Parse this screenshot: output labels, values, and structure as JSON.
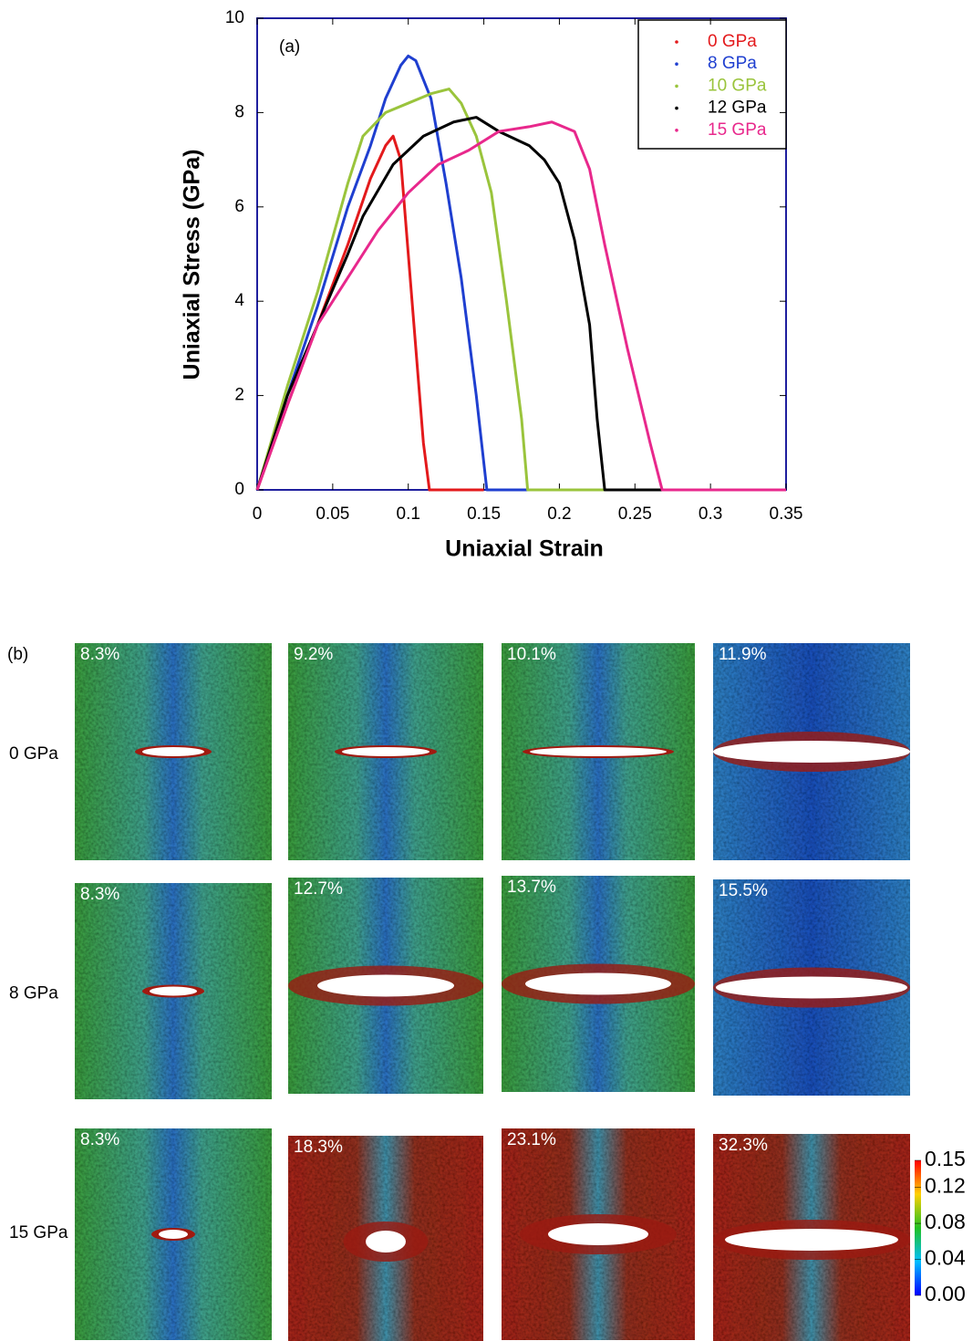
{
  "chart_data": {
    "type": "line",
    "annotation": "(a)",
    "xlabel": "Uniaxial Strain",
    "ylabel": "Uniaxial Stress (GPa)",
    "xlim": [
      0,
      0.35
    ],
    "xticks": [
      0,
      0.05,
      0.1,
      0.15,
      0.2,
      0.25,
      0.3,
      0.35
    ],
    "ylim": [
      0,
      10
    ],
    "yticks": [
      0,
      2,
      4,
      6,
      8,
      10
    ],
    "legend": "upper right",
    "series": [
      {
        "name": "0 GPa",
        "color": "#e31a1c",
        "x": [
          0,
          0.02,
          0.04,
          0.06,
          0.075,
          0.085,
          0.09,
          0.095,
          0.1,
          0.105,
          0.11,
          0.114,
          0.15
        ],
        "values": [
          0,
          1.8,
          3.5,
          5.2,
          6.6,
          7.3,
          7.5,
          7.0,
          5.0,
          3.0,
          1.0,
          0,
          0
        ]
      },
      {
        "name": "8 GPa",
        "color": "#1f3fd0",
        "x": [
          0,
          0.02,
          0.04,
          0.06,
          0.075,
          0.085,
          0.095,
          0.1,
          0.105,
          0.115,
          0.125,
          0.135,
          0.145,
          0.152,
          0.18
        ],
        "values": [
          0,
          2.0,
          3.9,
          6.0,
          7.3,
          8.3,
          9.0,
          9.2,
          9.1,
          8.3,
          6.5,
          4.5,
          2.0,
          0,
          0
        ]
      },
      {
        "name": "10 GPa",
        "color": "#9ac43c",
        "x": [
          0,
          0.02,
          0.04,
          0.06,
          0.07,
          0.085,
          0.1,
          0.115,
          0.127,
          0.135,
          0.145,
          0.155,
          0.165,
          0.175,
          0.179,
          0.23
        ],
        "values": [
          0,
          2.2,
          4.2,
          6.5,
          7.5,
          8.0,
          8.2,
          8.4,
          8.5,
          8.2,
          7.5,
          6.3,
          4.0,
          1.5,
          0,
          0
        ]
      },
      {
        "name": "12 GPa",
        "color": "#000000",
        "x": [
          0,
          0.02,
          0.04,
          0.06,
          0.07,
          0.09,
          0.11,
          0.13,
          0.145,
          0.16,
          0.18,
          0.19,
          0.2,
          0.21,
          0.22,
          0.225,
          0.23,
          0.268
        ],
        "values": [
          0,
          2.0,
          3.5,
          5.0,
          5.8,
          6.9,
          7.5,
          7.8,
          7.9,
          7.6,
          7.3,
          7.0,
          6.5,
          5.3,
          3.5,
          1.5,
          0,
          0
        ]
      },
      {
        "name": "15 GPa",
        "color": "#e8288c",
        "x": [
          0,
          0.02,
          0.04,
          0.06,
          0.08,
          0.1,
          0.12,
          0.14,
          0.16,
          0.18,
          0.195,
          0.21,
          0.22,
          0.23,
          0.245,
          0.26,
          0.268,
          0.35
        ],
        "values": [
          0,
          1.8,
          3.5,
          4.5,
          5.5,
          6.3,
          6.9,
          7.2,
          7.6,
          7.7,
          7.8,
          7.6,
          6.8,
          5.2,
          3.0,
          1.0,
          0,
          0
        ]
      }
    ]
  },
  "panel_b": {
    "label": "(b)",
    "rows": [
      {
        "label": "0 GPa",
        "strains": [
          "8.3%",
          "9.2%",
          "10.1%",
          "11.9%"
        ]
      },
      {
        "label": "8 GPa",
        "strains": [
          "8.3%",
          "12.7%",
          "13.7%",
          "15.5%"
        ]
      },
      {
        "label": "15 GPa",
        "strains": [
          "8.3%",
          "18.3%",
          "23.1%",
          "32.3%"
        ]
      }
    ],
    "colorbar": {
      "lim": [
        0,
        0.15
      ],
      "ticks": [
        {
          "value": 0,
          "label": "0.00"
        },
        0.04,
        0.08,
        0.12,
        0.15
      ]
    }
  }
}
